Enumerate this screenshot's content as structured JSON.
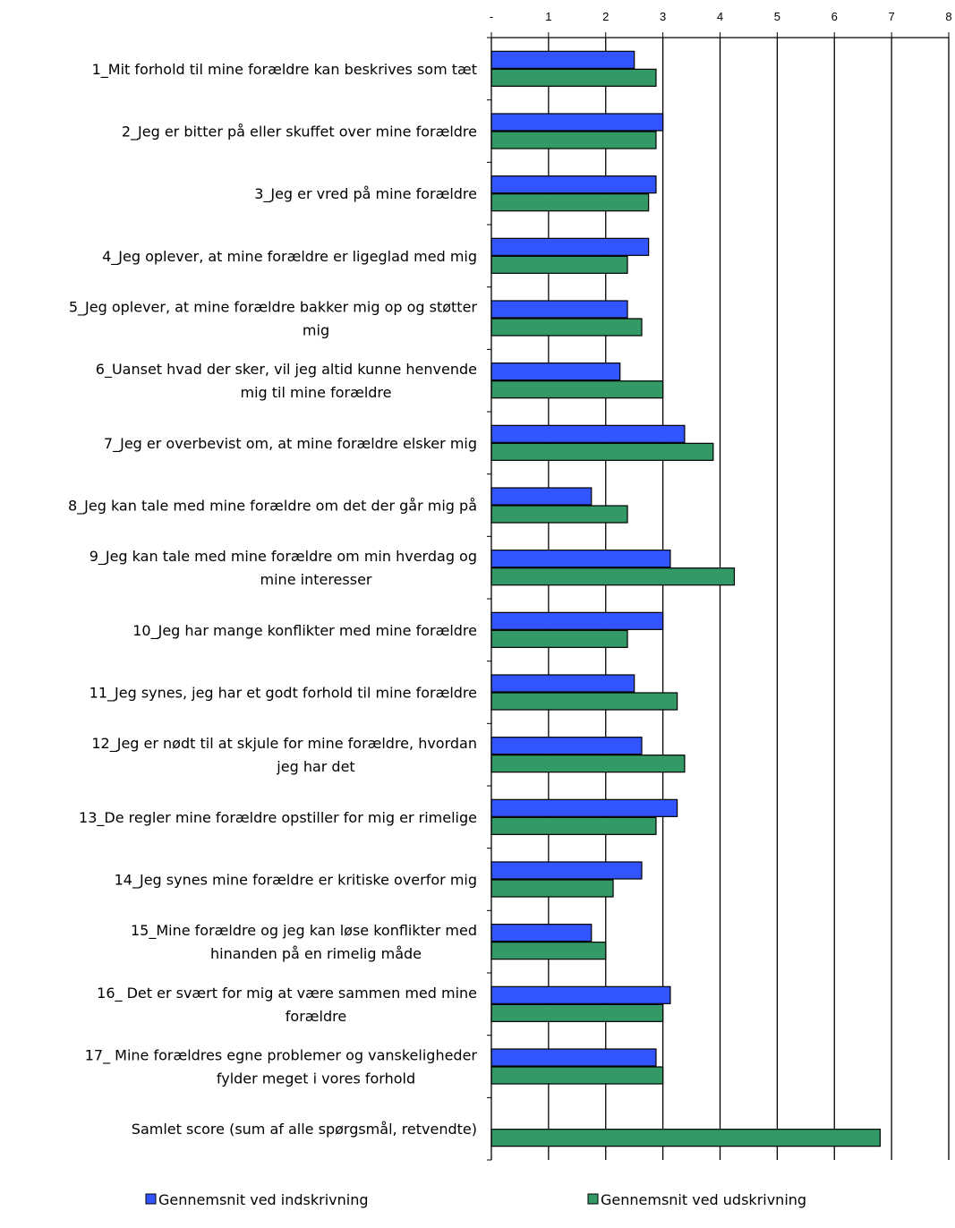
{
  "chart_data": {
    "type": "bar",
    "orientation": "horizontal",
    "title": "",
    "xlabel": "",
    "ylabel": "",
    "xlim": [
      0,
      8
    ],
    "x_ticks": [
      "-",
      "1",
      "2",
      "3",
      "4",
      "5",
      "6",
      "7",
      "8"
    ],
    "tick_position": "top",
    "grid": "vertical lines",
    "legend_position": "bottom",
    "categories": [
      [
        "1_Mit forhold til mine forældre kan beskrives som tæt"
      ],
      [
        "2_Jeg er bitter på eller skuffet over mine forældre"
      ],
      [
        "3_Jeg er vred på mine forældre"
      ],
      [
        "4_Jeg oplever, at mine forældre er ligeglad med mig"
      ],
      [
        "5_Jeg oplever, at mine forældre bakker mig op og støtter",
        "mig"
      ],
      [
        "6_Uanset hvad der sker, vil jeg altid kunne henvende",
        "mig til mine forældre"
      ],
      [
        "7_Jeg er overbevist om, at mine forældre elsker mig"
      ],
      [
        "8_Jeg kan tale med mine forældre om det der går mig på"
      ],
      [
        "9_Jeg kan tale med mine forældre om min hverdag og",
        "mine interesser"
      ],
      [
        "10_Jeg har mange konflikter med mine forældre"
      ],
      [
        "11_Jeg synes, jeg har et godt forhold til mine forældre"
      ],
      [
        "12_Jeg er nødt til at skjule for mine forældre, hvordan",
        "jeg har det"
      ],
      [
        "13_De regler mine forældre opstiller for mig er rimelige"
      ],
      [
        "14_Jeg synes mine forældre er kritiske overfor mig"
      ],
      [
        "15_Mine forældre og jeg kan løse konflikter med",
        "hinanden på en rimelig måde"
      ],
      [
        "16_ Det er svært for mig at være sammen med mine",
        "forældre"
      ],
      [
        "17_ Mine forældres egne problemer og vanskeligheder",
        "fylder meget i vores forhold"
      ],
      [
        "Samlet score (sum af alle spørgsmål, retvendte)"
      ]
    ],
    "series": [
      {
        "name": "Gennemsnit ved indskrivning",
        "color": "#3355FF",
        "values": [
          2.5,
          3.0,
          2.88,
          2.75,
          2.38,
          2.25,
          3.38,
          1.75,
          3.13,
          3.0,
          2.5,
          2.63,
          3.25,
          2.63,
          1.75,
          3.13,
          2.88,
          null
        ]
      },
      {
        "name": "Gennemsnit ved udskrivning",
        "color": "#339966",
        "values": [
          2.88,
          2.88,
          2.75,
          2.38,
          2.63,
          3.0,
          3.88,
          2.38,
          4.25,
          2.38,
          3.25,
          3.38,
          2.88,
          2.13,
          2.0,
          3.0,
          3.0,
          6.8
        ]
      }
    ]
  }
}
